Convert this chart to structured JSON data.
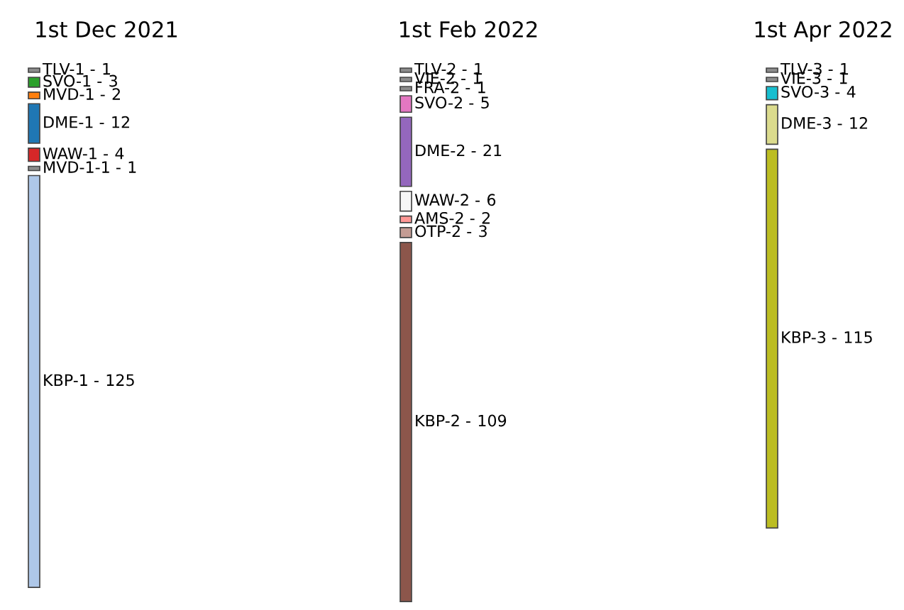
{
  "chart_data": {
    "type": "other",
    "categories": [
      "1st Dec 2021",
      "1st Feb 2022",
      "1st Apr 2022"
    ],
    "data_labels": true,
    "series": [
      {
        "name": "TLV-1 -",
        "values": [
          1,
          null,
          null
        ],
        "colors": [
          "#8c8c8c",
          null,
          null
        ]
      },
      {
        "name": "SVO-1 -",
        "values": [
          3,
          null,
          null
        ],
        "colors": [
          "#2ca02c",
          null,
          null
        ]
      },
      {
        "name": "MVD-1 -",
        "values": [
          2,
          null,
          null
        ],
        "colors": [
          "#ff7f0e",
          null,
          null
        ]
      },
      {
        "name": "DME-1 -",
        "values": [
          12,
          null,
          null
        ],
        "colors": [
          "#1f77b4",
          null,
          null
        ]
      },
      {
        "name": "WAW-1 -",
        "values": [
          4,
          null,
          null
        ],
        "colors": [
          "#d62728",
          null,
          null
        ]
      },
      {
        "name": "MVD-1-1 -",
        "values": [
          1,
          null,
          null
        ],
        "colors": [
          "#8c8c8c",
          null,
          null
        ]
      },
      {
        "name": "KBP-1 -",
        "values": [
          125,
          null,
          null
        ],
        "colors": [
          "#aec7e8",
          null,
          null
        ]
      },
      {
        "name": "TLV-2 -",
        "values": [
          null,
          1,
          null
        ],
        "colors": [
          null,
          "#8c8c8c",
          null
        ]
      },
      {
        "name": "VIE-2 -",
        "values": [
          null,
          1,
          null
        ],
        "colors": [
          null,
          "#8c8c8c",
          null
        ]
      },
      {
        "name": "FRA-2 -",
        "values": [
          null,
          1,
          null
        ],
        "colors": [
          null,
          "#8c8c8c",
          null
        ]
      },
      {
        "name": "SVO-2 -",
        "values": [
          null,
          5,
          null
        ],
        "colors": [
          null,
          "#e377c2",
          null
        ]
      },
      {
        "name": "DME-2 -",
        "values": [
          null,
          21,
          null
        ],
        "colors": [
          null,
          "#9467bd",
          null
        ]
      },
      {
        "name": "WAW-2 -",
        "values": [
          null,
          6,
          null
        ],
        "colors": [
          null,
          "#f7f7f7",
          null
        ]
      },
      {
        "name": "AMS-2 -",
        "values": [
          null,
          2,
          null
        ],
        "colors": [
          null,
          "#ff9896",
          null
        ]
      },
      {
        "name": "OTP-2 -",
        "values": [
          null,
          3,
          null
        ],
        "colors": [
          null,
          "#c49c94",
          null
        ]
      },
      {
        "name": "KBP-2 -",
        "values": [
          null,
          109,
          null
        ],
        "colors": [
          null,
          "#8c564b",
          null
        ]
      },
      {
        "name": "TLV-3 -",
        "values": [
          null,
          null,
          1
        ],
        "colors": [
          null,
          null,
          "#8c8c8c"
        ]
      },
      {
        "name": "VIE-3 -",
        "values": [
          null,
          null,
          1
        ],
        "colors": [
          null,
          null,
          "#8c8c8c"
        ]
      },
      {
        "name": "SVO-3 -",
        "values": [
          null,
          null,
          4
        ],
        "colors": [
          null,
          null,
          "#17becf"
        ]
      },
      {
        "name": "DME-3 -",
        "values": [
          null,
          null,
          12
        ],
        "colors": [
          null,
          null,
          "#dbdb8d"
        ]
      },
      {
        "name": "KBP-3 -",
        "values": [
          null,
          null,
          115
        ],
        "colors": [
          null,
          null,
          "#bcbd22"
        ]
      }
    ]
  }
}
